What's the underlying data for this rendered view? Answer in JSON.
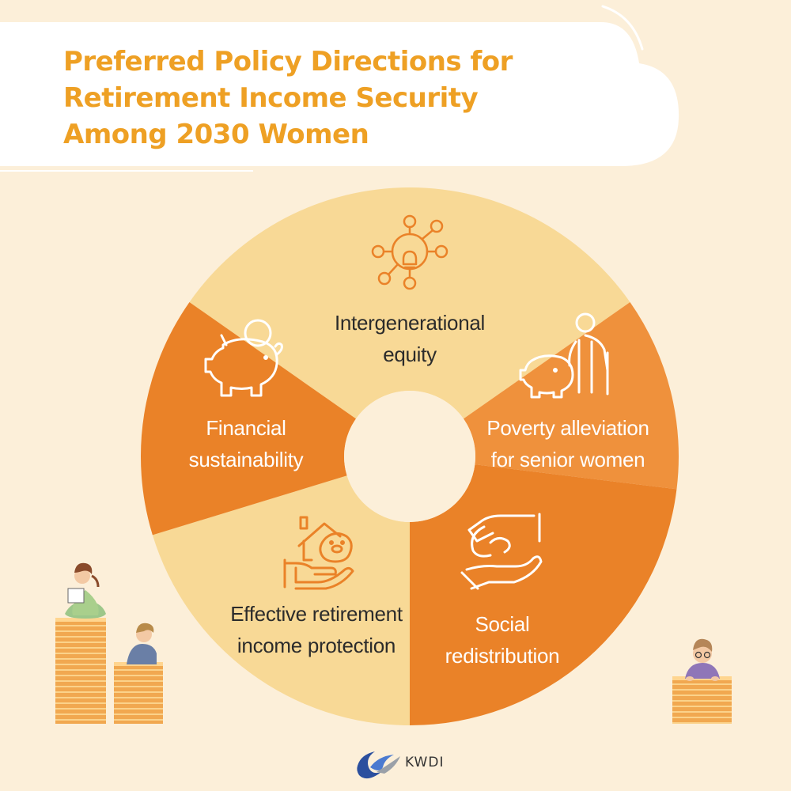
{
  "title": {
    "line1": "Preferred Policy Directions for",
    "line2": "Retirement Income Security",
    "line3": "Among 2030 Women"
  },
  "segments": [
    {
      "id": "intergenerational",
      "line1": "Intergenerational",
      "line2": "equity",
      "icon": "lightbulb-network-icon",
      "color": "#f8d996"
    },
    {
      "id": "poverty",
      "line1": "Poverty alleviation",
      "line2": "for senior women",
      "icon": "elderly-piggy-bank-icon",
      "color": "#ef913c"
    },
    {
      "id": "social",
      "line1": "Social",
      "line2": "redistribution",
      "icon": "hand-giving-money-icon",
      "color": "#ea8228"
    },
    {
      "id": "effective",
      "line1": "Effective retirement",
      "line2": "income protection",
      "icon": "house-piggy-hand-icon",
      "color": "#f8d996"
    },
    {
      "id": "financial",
      "line1": "Financial",
      "line2": "sustainability",
      "icon": "piggy-bank-coin-icon",
      "color": "#ea8228"
    }
  ],
  "footer": {
    "logo_text": "KWDI"
  }
}
